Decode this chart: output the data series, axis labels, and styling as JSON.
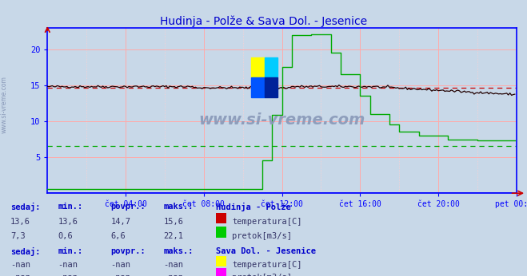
{
  "title": "Hudinja - Polže & Sava Dol. - Jesenice",
  "title_color": "#0000cc",
  "bg_color": "#c8d8e8",
  "plot_bg_color": "#c8d8e8",
  "grid_color_major": "#ffaaaa",
  "grid_color_minor": "#ffd0d0",
  "axis_color": "#0000ff",
  "watermark_color": "#8898b8",
  "xlim": [
    0,
    288
  ],
  "ylim": [
    0,
    23
  ],
  "yticks": [
    5,
    10,
    15,
    20
  ],
  "xtick_labels": [
    "čet 04:00",
    "čet 08:00",
    "čet 12:00",
    "čet 16:00",
    "čet 20:00",
    "pet 00:00"
  ],
  "xtick_positions": [
    48,
    96,
    144,
    192,
    240,
    288
  ],
  "temp_avg_line": 14.7,
  "temp_avg_color": "#cc0000",
  "flow_avg_line": 6.6,
  "flow_avg_color": "#00aa00",
  "temp_color": "#220000",
  "flow_color": "#00aa00",
  "legend_station1": "Hudinja - Polže",
  "legend_station2": "Sava Dol. - Jesenice",
  "legend_temp_color1": "#cc0000",
  "legend_flow_color1": "#00cc00",
  "legend_temp_color2": "#ffff00",
  "legend_flow_color2": "#ff00ff",
  "table_headers": [
    "sedaj:",
    "min.:",
    "povpr.:",
    "maks.:"
  ],
  "table_data1_temp": [
    "13,6",
    "13,6",
    "14,7",
    "15,6"
  ],
  "table_data1_flow": [
    "7,3",
    "0,6",
    "6,6",
    "22,1"
  ],
  "table_data2_temp": [
    "-nan",
    "-nan",
    "-nan",
    "-nan"
  ],
  "table_data2_flow": [
    "-nan",
    "-nan",
    "-nan",
    "-nan"
  ],
  "text_color_blue": "#0000cc",
  "text_color_dark": "#000066",
  "text_color_value": "#333366"
}
